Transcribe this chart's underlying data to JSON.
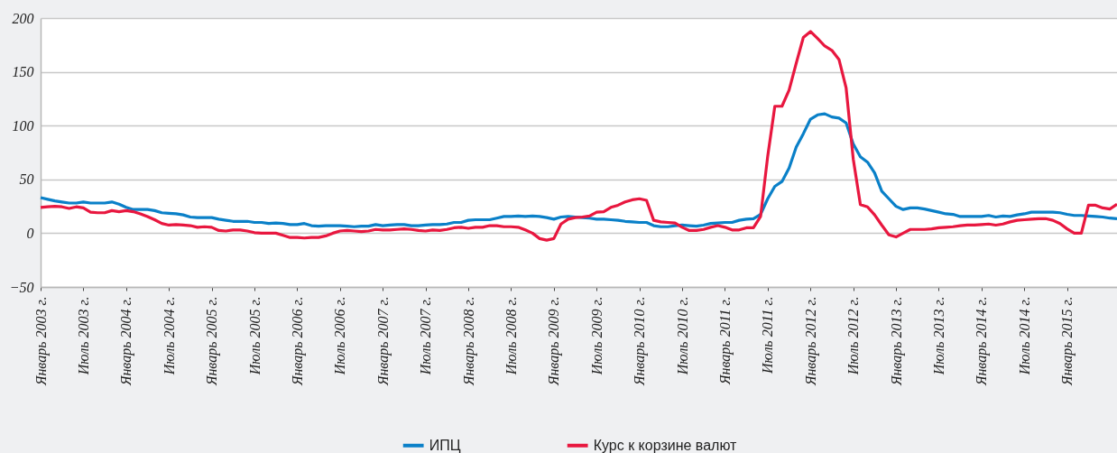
{
  "chart_data": {
    "type": "line",
    "categories": [
      "Январь 2003 г.",
      null,
      null,
      null,
      null,
      null,
      "Июль 2003 г.",
      null,
      null,
      null,
      null,
      null,
      "Январь 2004 г.",
      null,
      null,
      null,
      null,
      null,
      "Июль 2004 г.",
      null,
      null,
      null,
      null,
      null,
      "Январь 2005 г.",
      null,
      null,
      null,
      null,
      null,
      "Июль 2005 г.",
      null,
      null,
      null,
      null,
      null,
      "Январь 2006 г.",
      null,
      null,
      null,
      null,
      null,
      "Июль 2006 г.",
      null,
      null,
      null,
      null,
      null,
      "Январь 2007 г.",
      null,
      null,
      null,
      null,
      null,
      "Июль 2007 г.",
      null,
      null,
      null,
      null,
      null,
      "Январь 2008 г.",
      null,
      null,
      null,
      null,
      null,
      "Июль 2008 г.",
      null,
      null,
      null,
      null,
      null,
      "Январь 2009 г.",
      null,
      null,
      null,
      null,
      null,
      "Июль 2009 г.",
      null,
      null,
      null,
      null,
      null,
      "Январь 2010 г.",
      null,
      null,
      null,
      null,
      null,
      "Июль 2010 г.",
      null,
      null,
      null,
      null,
      null,
      "Январь 2011 г.",
      null,
      null,
      null,
      null,
      null,
      "Июль 2011 г.",
      null,
      null,
      null,
      null,
      null,
      "Январь 2012 г.",
      null,
      null,
      null,
      null,
      null,
      "Июль 2012 г.",
      null,
      null,
      null,
      null,
      null,
      "Январь 2013 г.",
      null,
      null,
      null,
      null,
      null,
      "Июль 2013 г.",
      null,
      null,
      null,
      null,
      null,
      "Январь 2014 г.",
      null,
      null,
      null,
      null,
      null,
      "Июль 2014 г.",
      null,
      null,
      null,
      null,
      null,
      "Январь 2015 г.",
      null,
      null,
      null,
      null,
      null,
      null,
      null
    ],
    "series": [
      {
        "name": "ИПЦ",
        "color": "#0a80c8",
        "values": [
          33,
          31.5,
          30,
          29,
          28,
          28,
          29,
          28,
          28,
          28,
          29,
          27,
          24,
          22,
          22,
          22,
          21,
          19,
          18.5,
          18,
          17,
          15,
          14.5,
          14.5,
          14.5,
          13,
          12,
          11,
          11,
          11,
          10,
          10,
          9,
          9.5,
          9,
          8,
          8,
          9,
          7,
          6.5,
          7,
          7,
          7,
          6.5,
          6,
          6.5,
          6.5,
          8,
          7,
          7.5,
          8,
          8,
          7,
          7,
          7.5,
          8,
          8,
          8.5,
          10,
          10,
          12,
          12.5,
          12.5,
          12.5,
          14,
          15.5,
          15.5,
          16,
          15.5,
          16,
          15.5,
          14.5,
          13,
          15,
          15.5,
          15,
          14.5,
          14,
          13,
          13,
          12.5,
          12,
          11,
          10.5,
          10,
          10,
          7,
          6,
          6,
          7,
          7.5,
          7,
          6.5,
          7.5,
          9,
          9.5,
          10,
          10,
          12,
          13,
          13.5,
          17.5,
          32,
          43.5,
          48,
          60.5,
          80,
          92.5,
          106,
          110,
          111,
          108,
          107,
          102.5,
          83,
          71,
          66,
          56,
          39,
          32,
          25,
          22,
          23.5,
          23.5,
          22.5,
          21,
          19.5,
          18,
          17.5,
          15.5,
          15.5,
          15.5,
          15.5,
          16.5,
          15,
          16,
          15.5,
          17,
          18,
          19.5,
          19.5,
          19.5,
          19.5,
          19,
          17.5,
          16.5,
          16.5,
          16,
          15.5,
          15,
          14,
          13.5
        ]
      },
      {
        "name": "Курс к корзине валют",
        "color": "#e8173f",
        "values": [
          24,
          24.5,
          25,
          24.5,
          23,
          24.5,
          23.5,
          19.5,
          19,
          19,
          21,
          20,
          21,
          20,
          18,
          15.5,
          12.5,
          9,
          7.5,
          8,
          7.5,
          7,
          5.5,
          6,
          5.5,
          2.5,
          2,
          3,
          3,
          2,
          0.5,
          0,
          0,
          0,
          -2,
          -4,
          -4,
          -4.5,
          -4,
          -4,
          -2.5,
          0,
          2,
          2.5,
          2,
          1.5,
          2,
          3.5,
          3,
          3,
          3.5,
          4,
          3.5,
          2.5,
          2,
          3,
          2.5,
          3.5,
          5,
          5.5,
          4.5,
          5.5,
          5.5,
          7,
          7,
          6,
          6,
          5.5,
          3,
          0,
          -5,
          -6.5,
          -5,
          8.5,
          13,
          14.5,
          15,
          16,
          19.5,
          20,
          24,
          26,
          29,
          31,
          32,
          30.5,
          12,
          10.5,
          10,
          9.5,
          5.5,
          2.5,
          2.5,
          3.5,
          5.5,
          7,
          5.5,
          3,
          3,
          5,
          5,
          15.5,
          71.5,
          118,
          118,
          133,
          158,
          182,
          187.5,
          181,
          174,
          170,
          161.5,
          135,
          69,
          26.5,
          24.5,
          17,
          7.5,
          -1.5,
          -3.5,
          0,
          3.5,
          3.5,
          3.5,
          4,
          5,
          5.5,
          6,
          7,
          7.5,
          7.5,
          8,
          8.5,
          7.5,
          8.5,
          10.5,
          12,
          12.5,
          13,
          13.5,
          13.5,
          12,
          9,
          4,
          0,
          0,
          26,
          26,
          23.5,
          22.5,
          27
        ]
      }
    ],
    "ylim": [
      -50,
      200
    ],
    "yticks": [
      -50,
      0,
      50,
      100,
      150,
      200
    ],
    "grid": "y",
    "legend": "bottom"
  }
}
